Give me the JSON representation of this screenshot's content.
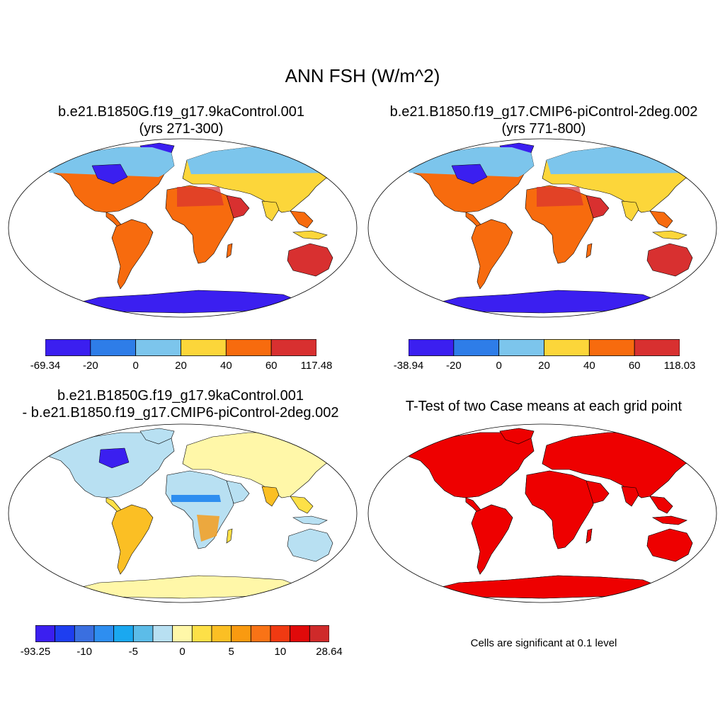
{
  "title": "ANN FSH (W/m^2)",
  "panels": {
    "p1": {
      "title_line1": "b.e21.B1850G.f19_g17.9kaControl.001",
      "title_line2": "(yrs 271-300)",
      "colorbar": {
        "colors": [
          "#3b1ff0",
          "#2e7de8",
          "#7cc5ec",
          "#fcd63a",
          "#f76b0e",
          "#d83030"
        ],
        "labels": [
          "-69.34",
          "-20",
          "0",
          "20",
          "40",
          "60",
          "117.48"
        ]
      }
    },
    "p2": {
      "title_line1": "b.e21.B1850.f19_g17.CMIP6-piControl-2deg.002",
      "title_line2": "(yrs 771-800)",
      "colorbar": {
        "colors": [
          "#3b1ff0",
          "#2e7de8",
          "#7cc5ec",
          "#fcd63a",
          "#f76b0e",
          "#d83030"
        ],
        "labels": [
          "-38.94",
          "-20",
          "0",
          "20",
          "40",
          "60",
          "118.03"
        ]
      }
    },
    "p3": {
      "title_line1": "b.e21.B1850G.f19_g17.9kaControl.001",
      "title_line2": "- b.e21.B1850.f19_g17.CMIP6-piControl-2deg.002",
      "colorbar": {
        "colors": [
          "#3b1ff0",
          "#1e3ef0",
          "#3a6fe0",
          "#2e8ef0",
          "#1aa8f0",
          "#5cbce8",
          "#b8e0f2",
          "#fff7a8",
          "#fde047",
          "#fbbf24",
          "#f99a10",
          "#f97316",
          "#f03a12",
          "#e00a0a",
          "#cf2a2a"
        ],
        "labels": [
          "-93.25",
          "-10",
          "-5",
          "0",
          "5",
          "10",
          "28.64"
        ]
      }
    },
    "p4": {
      "title": "T-Test of two Case means at each grid point",
      "note": "Cells are significant at 0.1 level",
      "color": "#ee0000"
    }
  }
}
